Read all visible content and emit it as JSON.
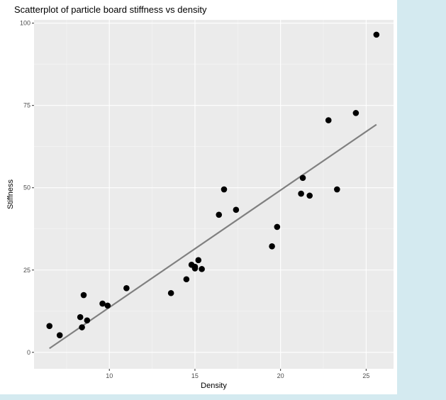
{
  "chart_data": {
    "type": "scatter",
    "title": "Scatterplot of particle board stiffness vs density",
    "xlabel": "Density",
    "ylabel": "Stiffness",
    "xlim": [
      5.6,
      26.6
    ],
    "ylim": [
      -5,
      101
    ],
    "x_ticks": [
      10,
      15,
      20,
      25
    ],
    "y_ticks": [
      0,
      25,
      50,
      75,
      100
    ],
    "x_minor": [
      7.5,
      12.5,
      17.5,
      22.5
    ],
    "y_minor": [
      12.5,
      37.5,
      62.5,
      87.5
    ],
    "points": [
      {
        "x": 6.5,
        "y": 8.0
      },
      {
        "x": 7.1,
        "y": 5.2
      },
      {
        "x": 8.3,
        "y": 10.7
      },
      {
        "x": 8.4,
        "y": 7.6
      },
      {
        "x": 8.5,
        "y": 17.4
      },
      {
        "x": 8.7,
        "y": 9.7
      },
      {
        "x": 9.6,
        "y": 14.8
      },
      {
        "x": 9.9,
        "y": 14.2
      },
      {
        "x": 11.0,
        "y": 19.5
      },
      {
        "x": 13.6,
        "y": 18.0
      },
      {
        "x": 14.5,
        "y": 22.2
      },
      {
        "x": 14.8,
        "y": 26.6
      },
      {
        "x": 15.0,
        "y": 25.5
      },
      {
        "x": 15.0,
        "y": 26.0
      },
      {
        "x": 15.2,
        "y": 28.0
      },
      {
        "x": 15.4,
        "y": 25.3
      },
      {
        "x": 16.4,
        "y": 41.8
      },
      {
        "x": 16.7,
        "y": 49.5
      },
      {
        "x": 17.4,
        "y": 43.3
      },
      {
        "x": 19.5,
        "y": 32.2
      },
      {
        "x": 19.8,
        "y": 38.1
      },
      {
        "x": 21.2,
        "y": 48.2
      },
      {
        "x": 21.3,
        "y": 53.0
      },
      {
        "x": 21.7,
        "y": 47.6
      },
      {
        "x": 22.8,
        "y": 70.5
      },
      {
        "x": 23.3,
        "y": 49.5
      },
      {
        "x": 24.4,
        "y": 72.7
      },
      {
        "x": 25.6,
        "y": 96.5
      }
    ],
    "fit_line": {
      "x": [
        6.5,
        25.6
      ],
      "y": [
        1.2,
        69.2
      ]
    },
    "colors": {
      "panel": "#ebebeb",
      "grid_major": "#ffffff",
      "point": "#000000",
      "line": "#808080",
      "axis_text": "#4d4d4d",
      "background": "#d4eaf0"
    }
  }
}
